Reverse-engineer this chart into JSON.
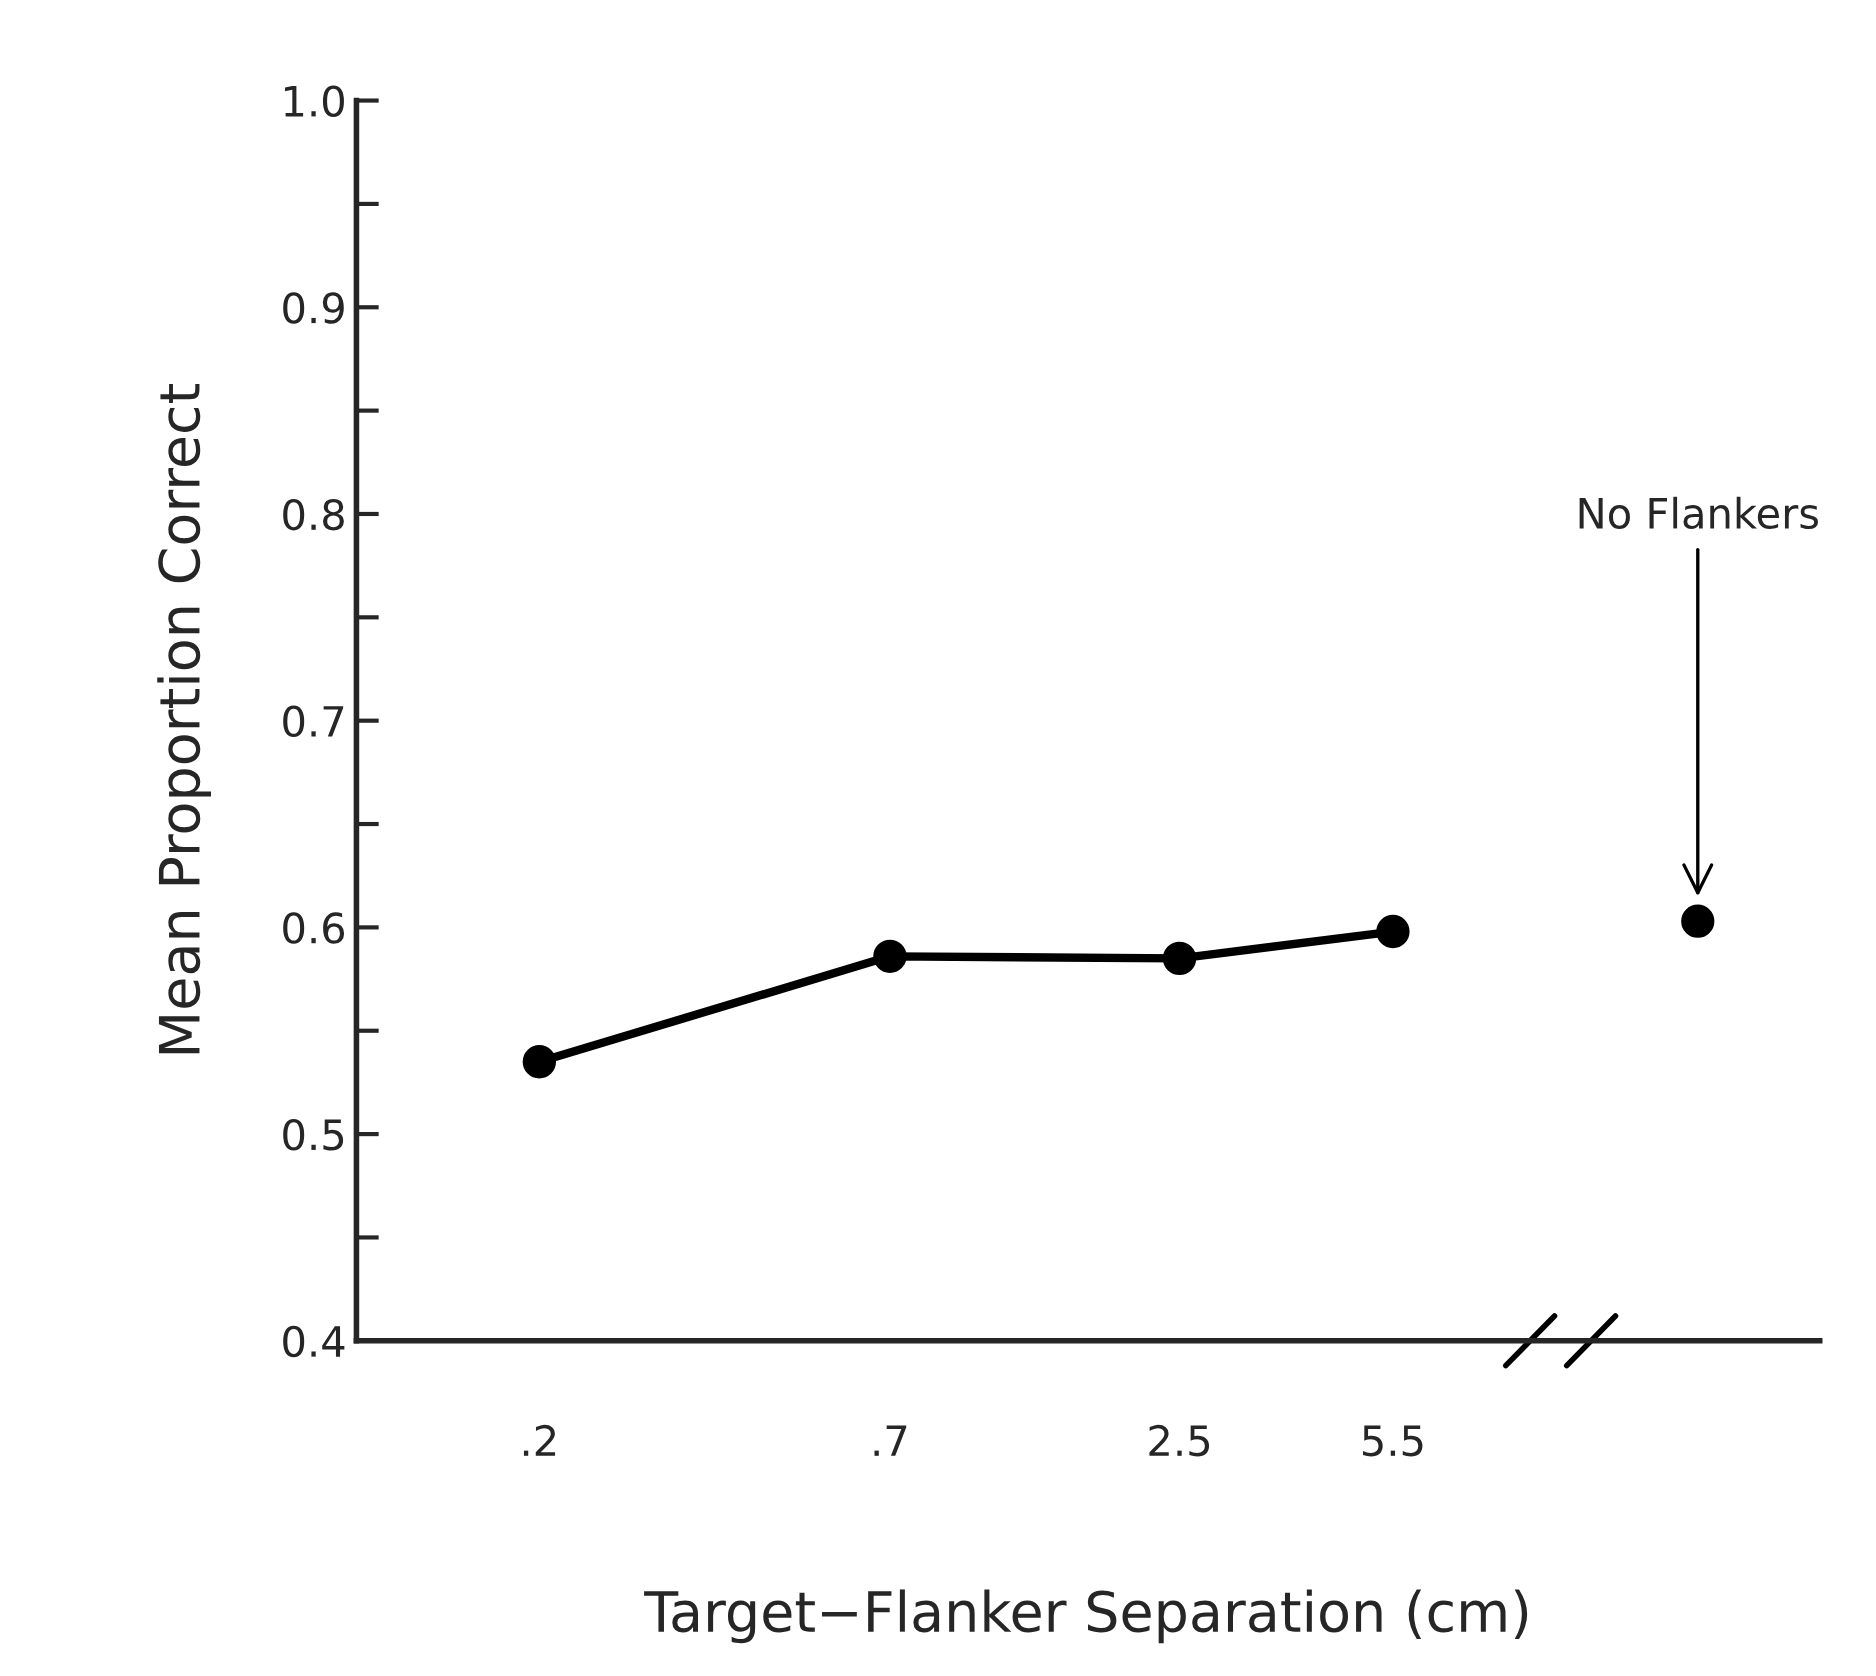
{
  "chart_data": {
    "type": "line",
    "xlabel": "Target−Flanker Separation (cm)",
    "ylabel": "Mean Proportion Correct",
    "categories": [
      ".2",
      ".7",
      "2.5",
      "5.5",
      null
    ],
    "series": [
      {
        "type": "line",
        "color": "#000000",
        "values": [
          0.535,
          0.586,
          0.585,
          0.598,
          null
        ]
      },
      {
        "type": "scatter",
        "color": "#000000",
        "values": [
          null,
          null,
          null,
          null,
          0.603
        ]
      }
    ],
    "marker": "circle",
    "line_style": "solid",
    "ylim": [
      0.4,
      1.0
    ],
    "yticks": [
      0.4,
      {
        "value": 0.45,
        "label": null
      },
      0.5,
      {
        "value": 0.55,
        "label": null
      },
      0.6,
      {
        "value": 0.65,
        "label": null
      },
      0.7,
      {
        "value": 0.75,
        "label": null
      },
      0.8,
      {
        "value": 0.85,
        "label": null
      },
      0.9,
      {
        "value": 0.95,
        "label": null
      },
      {
        "value": 1.0,
        "label": "1.0"
      }
    ],
    "annotations": [
      "No Flankers"
    ],
    "grid": false,
    "legend": false
  }
}
